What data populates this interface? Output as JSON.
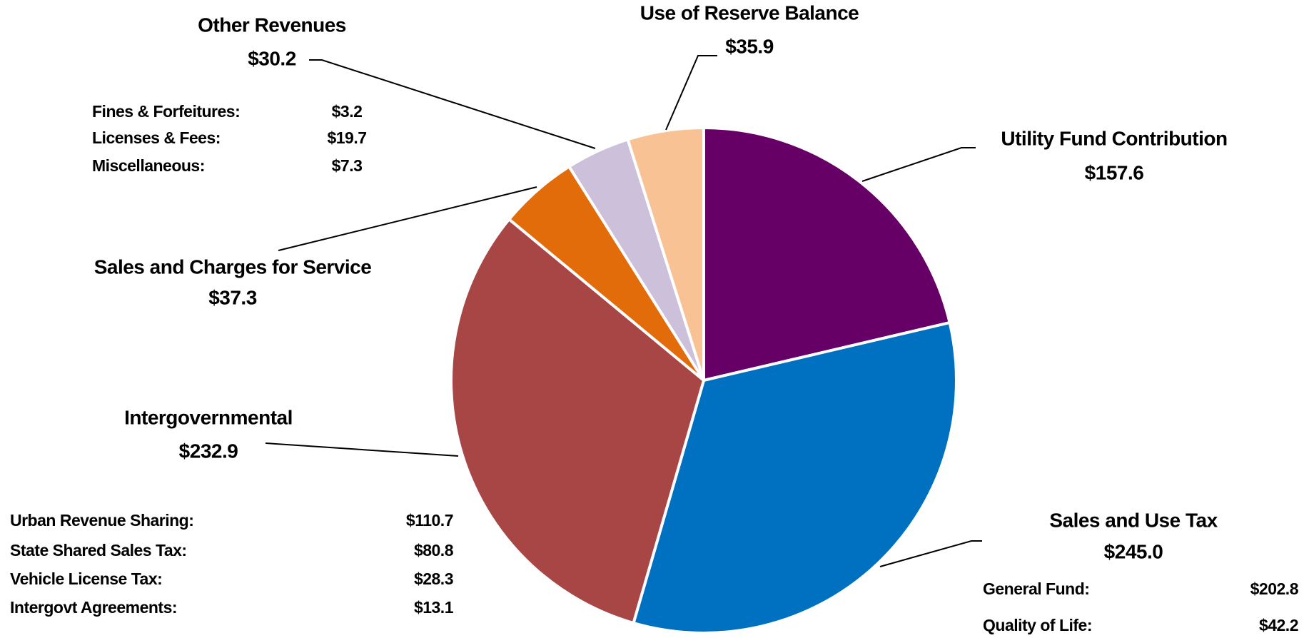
{
  "chart_data": {
    "type": "pie",
    "categories": [
      "Utility Fund Contribution",
      "Sales and Use Tax",
      "Intergovernmental",
      "Sales and Charges for Service",
      "Other Revenues",
      "Use of Reserve Balance"
    ],
    "values": [
      157.6,
      245.0,
      232.9,
      37.3,
      30.2,
      35.9
    ],
    "value_labels": [
      "$157.6",
      "$245.0",
      "$232.9",
      "$37.3",
      "$30.2",
      "$35.9"
    ],
    "colors": [
      "#660066",
      "#0070c0",
      "#a84545",
      "#e36c0a",
      "#ccc0da",
      "#f9c294"
    ],
    "details": {
      "sales_and_use_tax": [
        {
          "name": "General Fund:",
          "amount": "$202.8"
        },
        {
          "name": "Quality of Life:",
          "amount": "$42.2"
        }
      ],
      "intergovernmental": [
        {
          "name": "Urban Revenue Sharing:",
          "amount": "$110.7"
        },
        {
          "name": "State Shared Sales Tax:",
          "amount": "$80.8"
        },
        {
          "name": "Vehicle License Tax:",
          "amount": "$28.3"
        },
        {
          "name": "Intergovt Agreements:",
          "amount": "$13.1"
        }
      ],
      "other_revenues": [
        {
          "name": "Fines & Forfeitures:",
          "amount": "$3.2"
        },
        {
          "name": "Licenses & Fees:",
          "amount": "$19.7"
        },
        {
          "name": "Miscellaneous:",
          "amount": "$7.3"
        }
      ]
    }
  }
}
